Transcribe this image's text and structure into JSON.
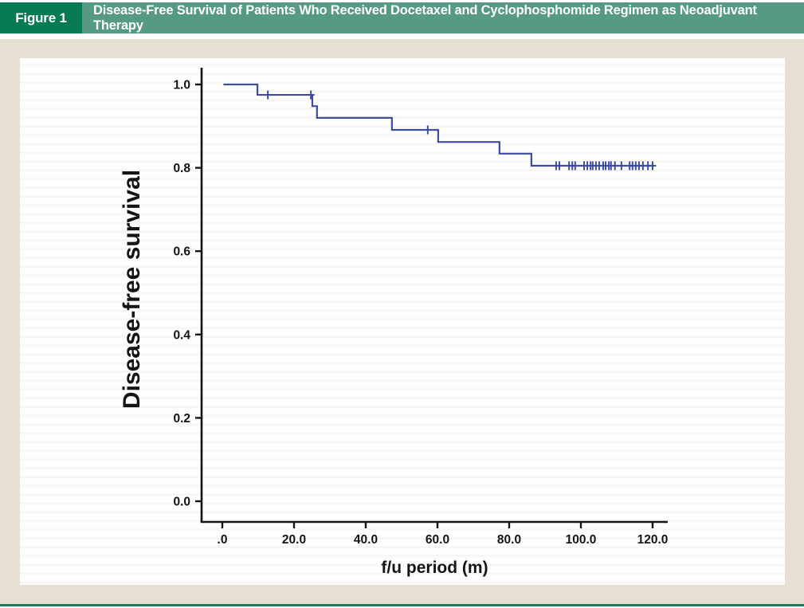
{
  "figure": {
    "label": "Figure 1",
    "title": "Disease-Free Survival of Patients Who Received Docetaxel and Cyclophosphomide Regimen as Neoadjuvant Therapy"
  },
  "colors": {
    "figure_label_bg": "#067a50",
    "header_bg": "#569a82",
    "header_text": "#ffffff",
    "panel_bg": "#e5e0d2",
    "bottom_rule": "#12805e",
    "curve": "#3e4da4",
    "axis": "#141414"
  },
  "chart_data": {
    "type": "line",
    "subtype": "kaplan-meier-step",
    "title": "",
    "xlabel": "f/u period (m)",
    "ylabel": "Disease-free survival",
    "x_ticks": [
      0,
      20,
      40,
      60,
      80,
      100,
      120
    ],
    "x_tick_labels": [
      ".0",
      "20.0",
      "40.0",
      "60.0",
      "80.0",
      "100.0",
      "120.0"
    ],
    "y_ticks": [
      1.0,
      0.8,
      0.6,
      0.4,
      0.2,
      0.0
    ],
    "y_tick_labels": [
      "1.0",
      "0.8",
      "0.6",
      "0.4",
      "0.2",
      "0.0"
    ],
    "xlim": [
      -6,
      124
    ],
    "ylim": [
      0,
      1
    ],
    "grid": false,
    "legend": false,
    "steps": [
      [
        0.3,
        1.0
      ],
      [
        9.8,
        0.975
      ],
      [
        25.1,
        0.948
      ],
      [
        26.4,
        0.92
      ],
      [
        47.3,
        0.891
      ],
      [
        60.2,
        0.862
      ],
      [
        77.3,
        0.834
      ],
      [
        86.2,
        0.805
      ]
    ],
    "end_month": 120.2,
    "censors": [
      [
        12.7,
        0.975
      ],
      [
        24.7,
        0.975
      ],
      [
        57.3,
        0.891
      ],
      [
        93.1,
        0.805
      ],
      [
        94.0,
        0.805
      ],
      [
        96.7,
        0.805
      ],
      [
        97.6,
        0.805
      ],
      [
        98.4,
        0.805
      ],
      [
        100.9,
        0.805
      ],
      [
        101.8,
        0.805
      ],
      [
        102.7,
        0.805
      ],
      [
        103.3,
        0.805
      ],
      [
        104.2,
        0.805
      ],
      [
        105.1,
        0.805
      ],
      [
        106.2,
        0.805
      ],
      [
        106.9,
        0.805
      ],
      [
        107.8,
        0.805
      ],
      [
        108.4,
        0.805
      ],
      [
        109.5,
        0.805
      ],
      [
        111.3,
        0.805
      ],
      [
        113.6,
        0.805
      ],
      [
        114.4,
        0.805
      ],
      [
        115.3,
        0.805
      ],
      [
        116.2,
        0.805
      ],
      [
        117.3,
        0.805
      ],
      [
        118.7,
        0.805
      ],
      [
        120.0,
        0.805
      ]
    ]
  }
}
